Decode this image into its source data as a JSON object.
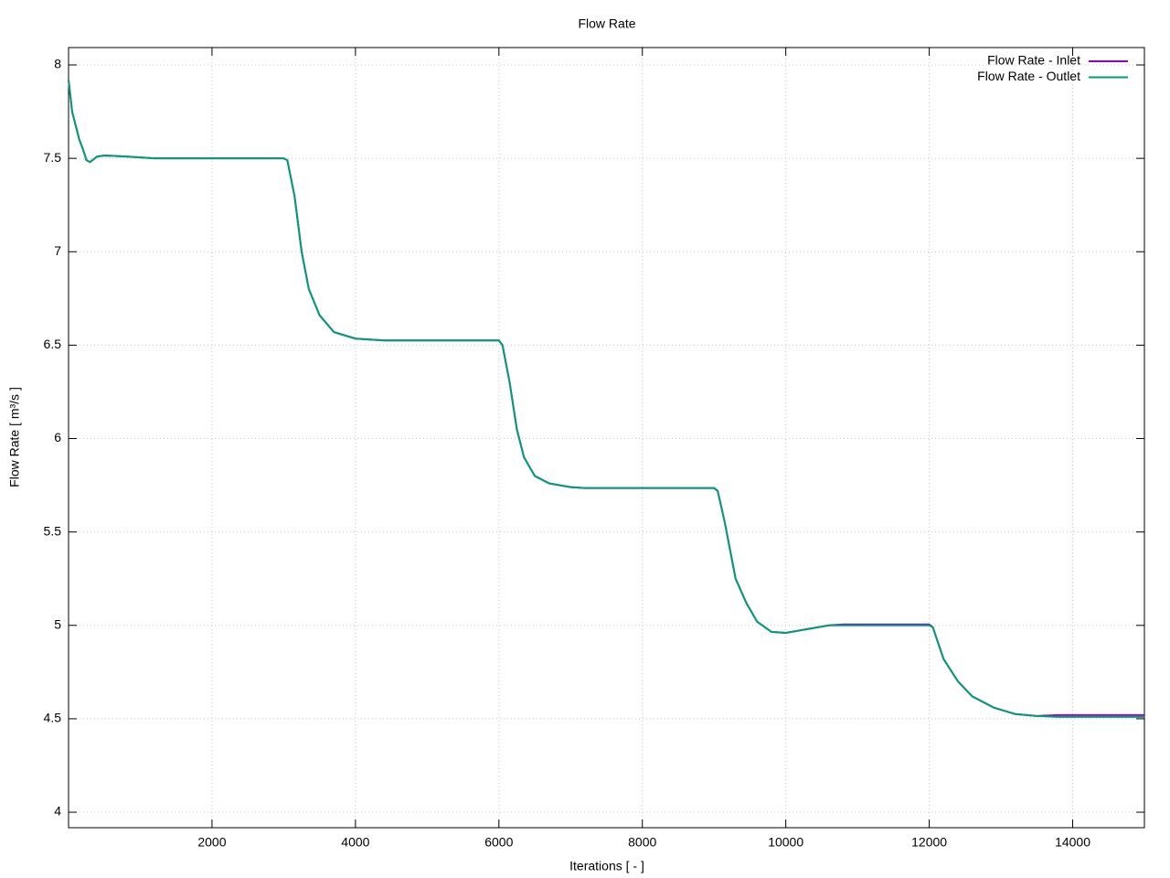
{
  "chart_data": {
    "type": "line",
    "title": "Flow Rate",
    "x_label": "Iterations [ - ]",
    "y_label": "Flow Rate [ m³/s ]",
    "x": [
      0,
      50,
      150,
      200,
      250,
      300,
      400,
      500,
      800,
      1200,
      3000,
      3050,
      3150,
      3250,
      3350,
      3500,
      3700,
      4000,
      4400,
      6000,
      6050,
      6150,
      6250,
      6350,
      6500,
      6700,
      7000,
      7200,
      9000,
      9050,
      9150,
      9300,
      9450,
      9600,
      9800,
      10000,
      10300,
      10600,
      10800,
      12000,
      12050,
      12200,
      12400,
      12600,
      12900,
      13200,
      13500,
      13800,
      15000
    ],
    "series": [
      {
        "name": "Flow Rate - Inlet",
        "color": "#9400d3",
        "values": [
          7.92,
          7.75,
          7.6,
          7.55,
          7.49,
          7.48,
          7.51,
          7.515,
          7.51,
          7.5,
          7.5,
          7.49,
          7.3,
          7.0,
          6.8,
          6.66,
          6.57,
          6.535,
          6.525,
          6.525,
          6.5,
          6.3,
          6.05,
          5.9,
          5.8,
          5.76,
          5.74,
          5.735,
          5.735,
          5.72,
          5.55,
          5.25,
          5.12,
          5.02,
          4.965,
          4.96,
          4.98,
          5.0,
          5.005,
          5.005,
          4.99,
          4.82,
          4.7,
          4.62,
          4.56,
          4.525,
          4.515,
          4.52,
          4.52
        ]
      },
      {
        "name": "Flow Rate - Outlet",
        "color": "#009e73",
        "values": [
          7.92,
          7.75,
          7.6,
          7.55,
          7.49,
          7.48,
          7.51,
          7.515,
          7.51,
          7.5,
          7.5,
          7.49,
          7.3,
          7.0,
          6.8,
          6.66,
          6.57,
          6.535,
          6.525,
          6.525,
          6.5,
          6.3,
          6.05,
          5.9,
          5.8,
          5.76,
          5.74,
          5.735,
          5.735,
          5.72,
          5.55,
          5.25,
          5.12,
          5.02,
          4.965,
          4.96,
          4.98,
          5.0,
          5.0,
          5.0,
          4.99,
          4.82,
          4.7,
          4.62,
          4.56,
          4.525,
          4.515,
          4.51,
          4.51
        ]
      }
    ],
    "xlim": [
      0,
      15000
    ],
    "ylim": [
      3.917,
      8.093
    ],
    "xticks": [
      2000,
      4000,
      6000,
      8000,
      10000,
      12000,
      14000
    ],
    "yticks": [
      4,
      4.5,
      5,
      5.5,
      6,
      6.5,
      7,
      7.5,
      8
    ],
    "grid": true,
    "legend": "top-right"
  }
}
